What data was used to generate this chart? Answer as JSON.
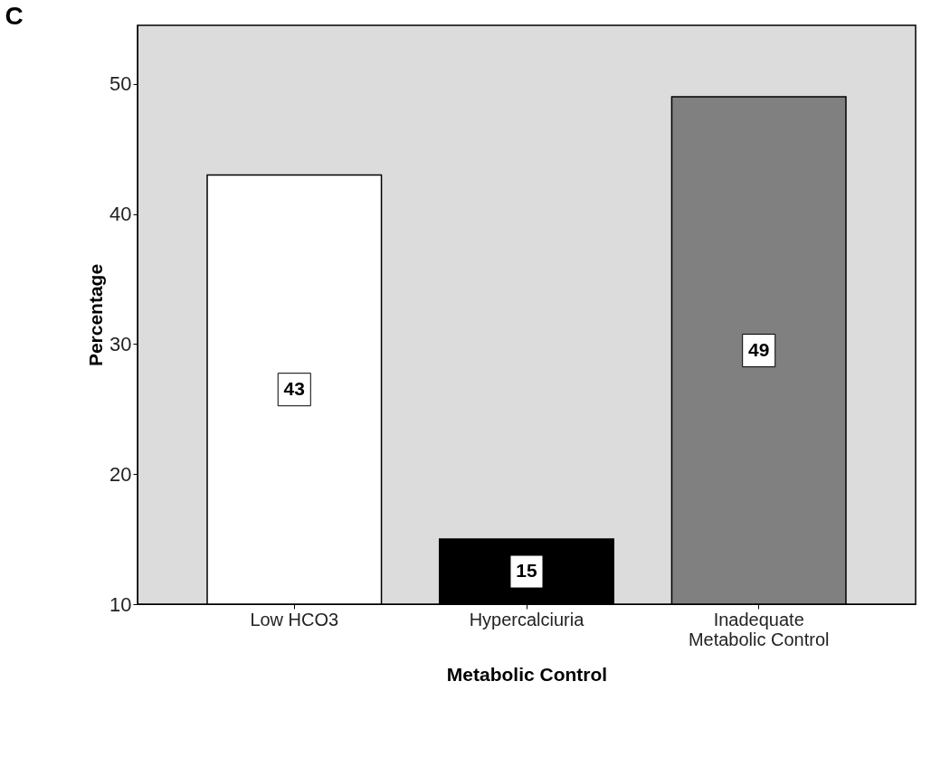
{
  "chart_data": {
    "type": "bar",
    "title": "C",
    "xlabel": "Metabolic Control",
    "ylabel": "Percentage",
    "categories": [
      "Low HCO3",
      "Hypercalciuria",
      "Inadequate\nMetabolic Control"
    ],
    "values": [
      43,
      15,
      49
    ],
    "colors": [
      "#ffffff",
      "#000000",
      "#808080"
    ],
    "ylim": [
      10,
      54.5
    ],
    "yticks": [
      10,
      20,
      30,
      40,
      50
    ],
    "grid": false,
    "data_labels": true
  }
}
